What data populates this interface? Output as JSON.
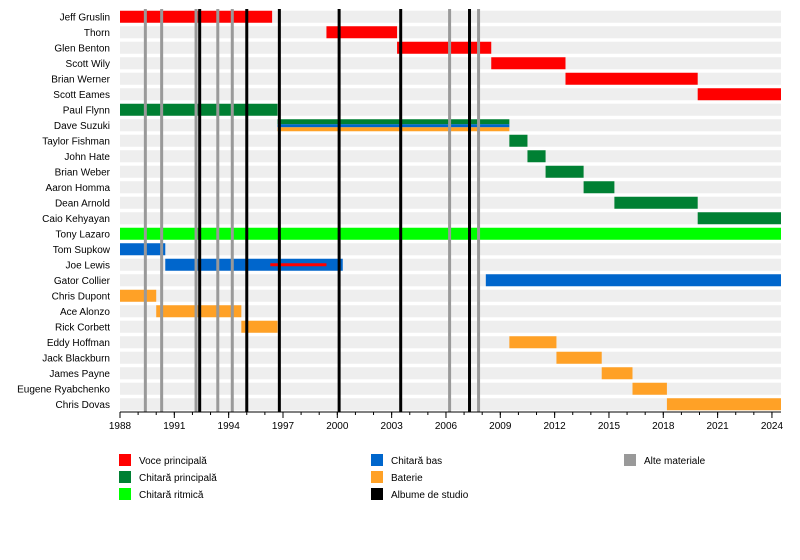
{
  "chart_data": {
    "type": "timeline",
    "x_axis": {
      "min": 1988,
      "max": 2024.5,
      "ticks": [
        1988,
        1991,
        1994,
        1997,
        2000,
        2003,
        2006,
        2009,
        2012,
        2015,
        2018,
        2021,
        2024
      ]
    },
    "colors": {
      "vocals": "#ff0000",
      "lead_guitar": "#008033",
      "rhythm_guitar": "#00ff00",
      "bass": "#0066cc",
      "drums": "#ffa126",
      "studio": "#000000",
      "other": "#999999"
    },
    "members": [
      {
        "name": "Jeff Gruslin",
        "bars": [
          {
            "role": "vocals",
            "start": 1988.0,
            "end": 1996.4
          }
        ]
      },
      {
        "name": "Thorn",
        "bars": [
          {
            "role": "vocals",
            "start": 1999.4,
            "end": 2003.3
          }
        ]
      },
      {
        "name": "Glen Benton",
        "bars": [
          {
            "role": "vocals",
            "start": 2003.3,
            "end": 2008.5
          }
        ]
      },
      {
        "name": "Scott Wily",
        "bars": [
          {
            "role": "vocals",
            "start": 2008.5,
            "end": 2012.6
          }
        ]
      },
      {
        "name": "Brian Werner",
        "bars": [
          {
            "role": "vocals",
            "start": 2012.6,
            "end": 2019.9
          }
        ]
      },
      {
        "name": "Scott Eames",
        "bars": [
          {
            "role": "vocals",
            "start": 2019.9,
            "end": 2024.5
          }
        ]
      },
      {
        "name": "Paul Flynn",
        "bars": [
          {
            "role": "lead_guitar",
            "start": 1988.0,
            "end": 1996.7
          }
        ]
      },
      {
        "name": "Dave Suzuki",
        "bars": [
          {
            "role": "lead_guitar",
            "start": 1996.7,
            "end": 2009.5
          },
          {
            "role": "bass",
            "start": 1996.7,
            "end": 2009.5
          },
          {
            "role": "drums",
            "start": 1996.7,
            "end": 2009.5
          }
        ]
      },
      {
        "name": "Taylor Fishman",
        "bars": [
          {
            "role": "lead_guitar",
            "start": 2009.5,
            "end": 2010.5
          }
        ]
      },
      {
        "name": "John Hate",
        "bars": [
          {
            "role": "lead_guitar",
            "start": 2010.5,
            "end": 2011.5
          }
        ]
      },
      {
        "name": "Brian Weber",
        "bars": [
          {
            "role": "lead_guitar",
            "start": 2011.5,
            "end": 2013.6
          }
        ]
      },
      {
        "name": "Aaron Homma",
        "bars": [
          {
            "role": "lead_guitar",
            "start": 2013.6,
            "end": 2015.3
          }
        ]
      },
      {
        "name": "Dean Arnold",
        "bars": [
          {
            "role": "lead_guitar",
            "start": 2015.3,
            "end": 2019.9
          }
        ]
      },
      {
        "name": "Caio Kehyayan",
        "bars": [
          {
            "role": "lead_guitar",
            "start": 2019.9,
            "end": 2024.5
          }
        ]
      },
      {
        "name": "Tony Lazaro",
        "bars": [
          {
            "role": "rhythm_guitar",
            "start": 1988.0,
            "end": 2024.5
          }
        ]
      },
      {
        "name": "Tom Supkow",
        "bars": [
          {
            "role": "bass",
            "start": 1988.0,
            "end": 1990.5
          }
        ]
      },
      {
        "name": "Joe Lewis",
        "bars": [
          {
            "role": "bass",
            "start": 1990.5,
            "end": 2000.3
          },
          {
            "role": "vocals",
            "start": 1996.3,
            "end": 1999.4
          }
        ]
      },
      {
        "name": "Gator Collier",
        "bars": [
          {
            "role": "bass",
            "start": 2008.2,
            "end": 2024.5
          }
        ]
      },
      {
        "name": "Chris Dupont",
        "bars": [
          {
            "role": "drums",
            "start": 1988.0,
            "end": 1990.0
          }
        ]
      },
      {
        "name": "Ace Alonzo",
        "bars": [
          {
            "role": "drums",
            "start": 1990.0,
            "end": 1994.7
          }
        ]
      },
      {
        "name": "Rick Corbett",
        "bars": [
          {
            "role": "drums",
            "start": 1994.7,
            "end": 1996.7
          }
        ]
      },
      {
        "name": "Eddy Hoffman",
        "bars": [
          {
            "role": "drums",
            "start": 2009.5,
            "end": 2012.1
          }
        ]
      },
      {
        "name": "Jack Blackburn",
        "bars": [
          {
            "role": "drums",
            "start": 2012.1,
            "end": 2014.6
          }
        ]
      },
      {
        "name": "James Payne",
        "bars": [
          {
            "role": "drums",
            "start": 2014.6,
            "end": 2016.3
          }
        ]
      },
      {
        "name": "Eugene Ryabchenko",
        "bars": [
          {
            "role": "drums",
            "start": 2016.3,
            "end": 2018.2
          }
        ]
      },
      {
        "name": "Chris Dovas",
        "bars": [
          {
            "role": "drums",
            "start": 2018.2,
            "end": 2024.5
          }
        ]
      }
    ],
    "studio_albums": [
      1992.4,
      1995.0,
      1996.8,
      2000.1,
      2003.5,
      2007.3
    ],
    "other_releases": [
      1989.4,
      1990.3,
      1992.2,
      1993.4,
      1994.2,
      2006.2,
      2007.8
    ],
    "legend": [
      {
        "role": "vocals",
        "label": "Voce principală"
      },
      {
        "role": "lead_guitar",
        "label": "Chitară principală"
      },
      {
        "role": "rhythm_guitar",
        "label": "Chitară ritmică"
      },
      {
        "role": "bass",
        "label": "Chitară bas"
      },
      {
        "role": "drums",
        "label": "Baterie"
      },
      {
        "role": "studio",
        "label": "Albume de studio"
      },
      {
        "role": "other",
        "label": "Alte materiale"
      }
    ]
  }
}
